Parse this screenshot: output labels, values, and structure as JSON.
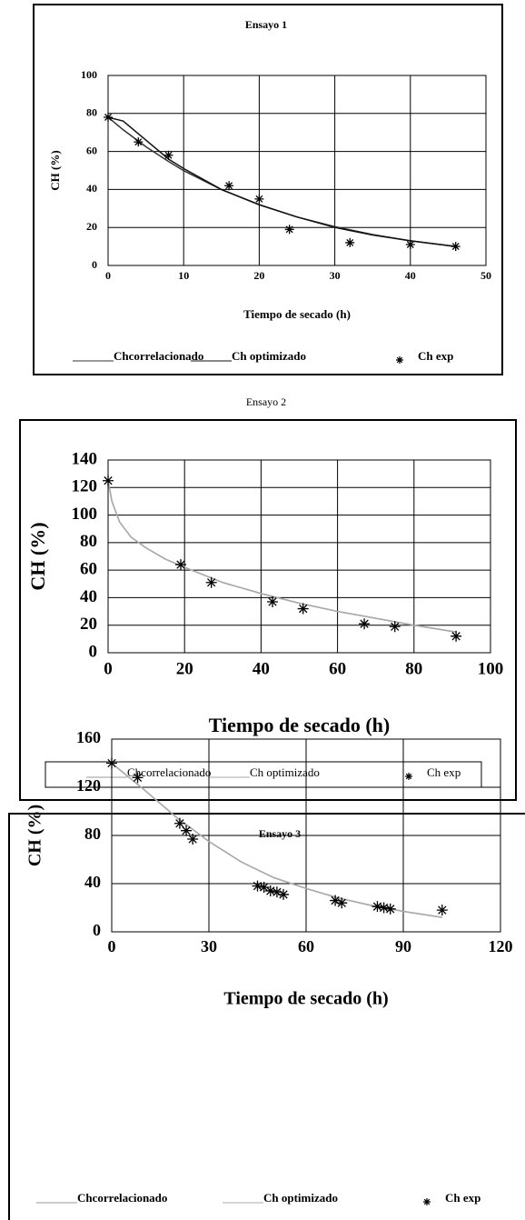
{
  "chart_data": [
    {
      "type": "line",
      "title": "Ensayo 1",
      "xlabel": "Tiempo de secado (h)",
      "ylabel": "CH (%)",
      "xlim": [
        0,
        50
      ],
      "ylim": [
        0,
        100
      ],
      "xticks": [
        0,
        10,
        20,
        30,
        40,
        50
      ],
      "yticks": [
        0,
        20,
        40,
        60,
        80,
        100
      ],
      "grid": true,
      "series": [
        {
          "name": "Chcorrelacionado",
          "color": "#333333",
          "kind": "line",
          "x": [
            0,
            2,
            5,
            8,
            10,
            15,
            20,
            25,
            30,
            35,
            40,
            46
          ],
          "values": [
            78,
            71.4,
            62.5,
            54.7,
            49.9,
            39.9,
            31.9,
            25.5,
            20.4,
            16.3,
            13,
            10
          ]
        },
        {
          "name": "Ch optimizado",
          "color": "#111111",
          "kind": "line",
          "x": [
            0,
            2,
            5,
            8,
            10,
            15,
            20,
            25,
            30,
            35,
            40,
            46
          ],
          "values": [
            78,
            76,
            66,
            56,
            51,
            40,
            32,
            25.5,
            20,
            16,
            13,
            10
          ]
        },
        {
          "name": "Ch exp",
          "color": "#000000",
          "kind": "scatter",
          "x": [
            0,
            4,
            8,
            16,
            20,
            24,
            32,
            40,
            46
          ],
          "values": [
            78,
            65,
            58,
            42,
            35,
            19,
            12,
            11,
            10
          ]
        }
      ]
    },
    {
      "type": "line",
      "title": "Ensayo 2",
      "xlabel": "Tiempo de secado (h)",
      "ylabel": "CH (%)",
      "xlim": [
        0,
        100
      ],
      "ylim": [
        0,
        140
      ],
      "xticks": [
        0,
        20,
        40,
        60,
        80,
        100
      ],
      "yticks": [
        0,
        20,
        40,
        60,
        80,
        100,
        120,
        140
      ],
      "grid": true,
      "series": [
        {
          "name": "Chcorrelacionado",
          "color": "#999999",
          "kind": "line",
          "x": [
            0,
            1,
            3,
            6,
            10,
            15,
            20,
            30,
            40,
            50,
            60,
            70,
            80,
            91
          ],
          "values": [
            125,
            110,
            95,
            84,
            76,
            68,
            62,
            51,
            43,
            36,
            30,
            25,
            20,
            15
          ]
        },
        {
          "name": "Ch optimizado",
          "color": "#aaaaaa",
          "kind": "line",
          "x": [
            0,
            1,
            3,
            6,
            10,
            15,
            20,
            30,
            40,
            50,
            60,
            70,
            80,
            91
          ],
          "values": [
            125,
            110,
            95,
            84,
            76,
            68,
            62,
            51,
            43,
            36,
            30,
            25,
            20,
            15
          ]
        },
        {
          "name": "Ch exp",
          "color": "#000000",
          "kind": "scatter",
          "x": [
            0,
            19,
            27,
            43,
            51,
            67,
            75,
            91
          ],
          "values": [
            125,
            64,
            51,
            37,
            32,
            21,
            19,
            12
          ]
        }
      ]
    },
    {
      "type": "line",
      "title": "Ensayo 3",
      "xlabel": "Tiempo de secado (h)",
      "ylabel": "CH (%)",
      "xlim": [
        0,
        120
      ],
      "ylim": [
        0,
        160
      ],
      "xticks": [
        0,
        30,
        60,
        90,
        120
      ],
      "yticks": [
        0,
        40,
        80,
        120,
        160
      ],
      "grid": true,
      "series": [
        {
          "name": "Chcorrelacionado",
          "color": "#999999",
          "kind": "line",
          "x": [
            0,
            10,
            20,
            30,
            40,
            50,
            60,
            70,
            80,
            90,
            102
          ],
          "values": [
            140,
            118,
            95,
            75,
            58,
            45,
            36,
            28,
            22,
            17,
            12
          ]
        },
        {
          "name": "Ch optimizado",
          "color": "#aaaaaa",
          "kind": "line",
          "x": [
            0,
            10,
            20,
            30,
            40,
            50,
            60,
            70,
            80,
            90,
            102
          ],
          "values": [
            140,
            118,
            95,
            75,
            58,
            45,
            36,
            28,
            22,
            17,
            12
          ]
        },
        {
          "name": "Ch exp",
          "color": "#000000",
          "kind": "scatter",
          "x": [
            0,
            8,
            21,
            23,
            25,
            45,
            47,
            49,
            51,
            53,
            69,
            71,
            82,
            84,
            86,
            102
          ],
          "values": [
            140,
            128,
            90,
            84,
            77,
            38,
            37,
            34,
            33,
            31,
            26,
            24,
            21,
            20,
            19,
            18
          ]
        }
      ]
    }
  ]
}
